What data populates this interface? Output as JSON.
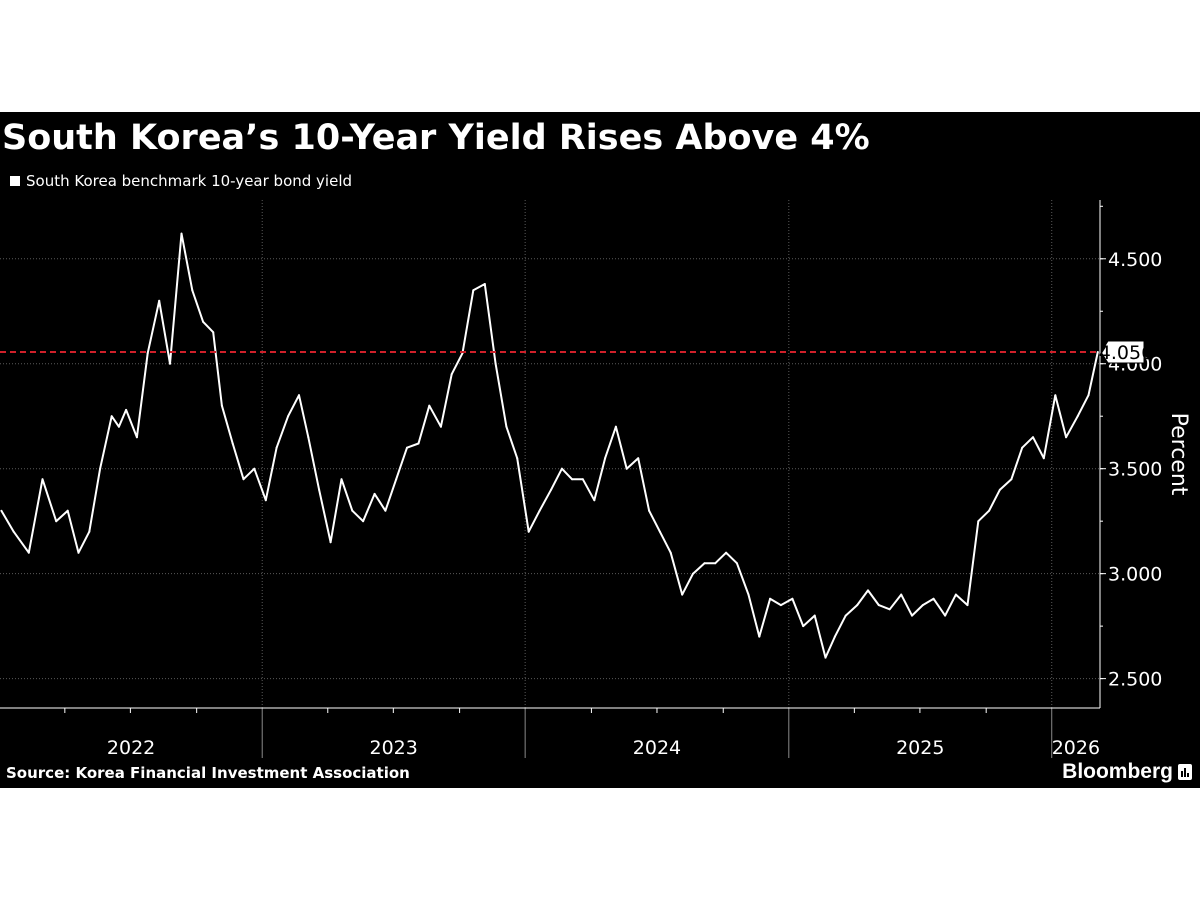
{
  "header": {
    "title": "South Korea’s 10-Year Yield Rises Above 4%",
    "legend_label": "South Korea benchmark 10-year bond yield"
  },
  "footer": {
    "source": "Source: Korea Financial Investment Association",
    "brand": "Bloomberg"
  },
  "colors": {
    "background": "#000000",
    "line": "#ffffff",
    "reference": "#d0202a",
    "grid": "#5a5a5a"
  },
  "chart_data": {
    "type": "line",
    "series": [
      {
        "name": "South Korea benchmark 10-year bond yield",
        "x": [
          "2022-01-03",
          "2022-01-20",
          "2022-02-10",
          "2022-03-01",
          "2022-03-20",
          "2022-04-05",
          "2022-04-20",
          "2022-05-05",
          "2022-05-20",
          "2022-06-05",
          "2022-06-15",
          "2022-06-25",
          "2022-07-10",
          "2022-07-25",
          "2022-08-10",
          "2022-08-25",
          "2022-09-10",
          "2022-09-25",
          "2022-10-10",
          "2022-10-24",
          "2022-11-05",
          "2022-11-20",
          "2022-12-05",
          "2022-12-20",
          "2023-01-05",
          "2023-01-20",
          "2023-02-05",
          "2023-02-20",
          "2023-03-05",
          "2023-03-20",
          "2023-04-05",
          "2023-04-20",
          "2023-05-05",
          "2023-05-20",
          "2023-06-05",
          "2023-06-20",
          "2023-07-05",
          "2023-07-20",
          "2023-08-05",
          "2023-08-20",
          "2023-09-05",
          "2023-09-20",
          "2023-10-05",
          "2023-10-20",
          "2023-11-05",
          "2023-11-20",
          "2023-12-05",
          "2023-12-20",
          "2024-01-05",
          "2024-01-20",
          "2024-02-05",
          "2024-02-20",
          "2024-03-05",
          "2024-03-20",
          "2024-04-05",
          "2024-04-20",
          "2024-05-05",
          "2024-05-20",
          "2024-06-05",
          "2024-06-20",
          "2024-07-05",
          "2024-07-20",
          "2024-08-05",
          "2024-08-20",
          "2024-09-05",
          "2024-09-20",
          "2024-10-05",
          "2024-10-20",
          "2024-11-05",
          "2024-11-20",
          "2024-12-05",
          "2024-12-20",
          "2025-01-05",
          "2025-01-20",
          "2025-02-05",
          "2025-02-20",
          "2025-03-05",
          "2025-03-20",
          "2025-04-05",
          "2025-04-20",
          "2025-05-05",
          "2025-05-20",
          "2025-06-05",
          "2025-06-20",
          "2025-07-05",
          "2025-07-20",
          "2025-08-05",
          "2025-08-20",
          "2025-09-05",
          "2025-09-20",
          "2025-10-05",
          "2025-10-20",
          "2025-11-05",
          "2025-11-20",
          "2025-12-05",
          "2025-12-20",
          "2026-01-05",
          "2026-01-20",
          "2026-02-05",
          "2026-02-20",
          "2026-03-05"
        ],
        "y": [
          3.3,
          3.2,
          3.1,
          3.45,
          3.25,
          3.3,
          3.1,
          3.2,
          3.5,
          3.75,
          3.7,
          3.78,
          3.65,
          4.05,
          4.3,
          4.0,
          4.62,
          4.35,
          4.2,
          4.15,
          3.8,
          3.62,
          3.45,
          3.5,
          3.35,
          3.6,
          3.75,
          3.85,
          3.65,
          3.4,
          3.15,
          3.45,
          3.3,
          3.25,
          3.38,
          3.3,
          3.45,
          3.6,
          3.62,
          3.8,
          3.7,
          3.95,
          4.05,
          4.35,
          4.38,
          4.0,
          3.7,
          3.55,
          3.2,
          3.3,
          3.4,
          3.5,
          3.45,
          3.45,
          3.35,
          3.55,
          3.7,
          3.5,
          3.55,
          3.3,
          3.2,
          3.1,
          2.9,
          3.0,
          3.05,
          3.05,
          3.1,
          3.05,
          2.9,
          2.7,
          2.88,
          2.85,
          2.88,
          2.75,
          2.8,
          2.6,
          2.7,
          2.8,
          2.85,
          2.92,
          2.85,
          2.83,
          2.9,
          2.8,
          2.85,
          2.88,
          2.8,
          2.9,
          2.85,
          3.25,
          3.3,
          3.4,
          3.45,
          3.6,
          3.65,
          3.55,
          3.85,
          3.65,
          3.75,
          3.85,
          4.056
        ]
      }
    ],
    "xlabel": "",
    "ylabel": "Percent",
    "ylim": [
      2.36,
      4.78
    ],
    "xlim": [
      "2022-01-01",
      "2026-03-08"
    ],
    "yticks": [
      2.5,
      3.0,
      3.5,
      4.0,
      4.5
    ],
    "ytick_labels": [
      "2.500",
      "3.000",
      "3.500",
      "4.000",
      "4.500"
    ],
    "year_labels": [
      "2022",
      "2023",
      "2024",
      "2025",
      "2026"
    ],
    "year_boundaries": [
      "2022-12-31",
      "2023-12-31",
      "2024-12-31",
      "2025-12-31"
    ],
    "reference_line": {
      "value": 4.056,
      "label": "4.056",
      "style": "dashed"
    },
    "grid": true,
    "legend_position": "top-left"
  }
}
